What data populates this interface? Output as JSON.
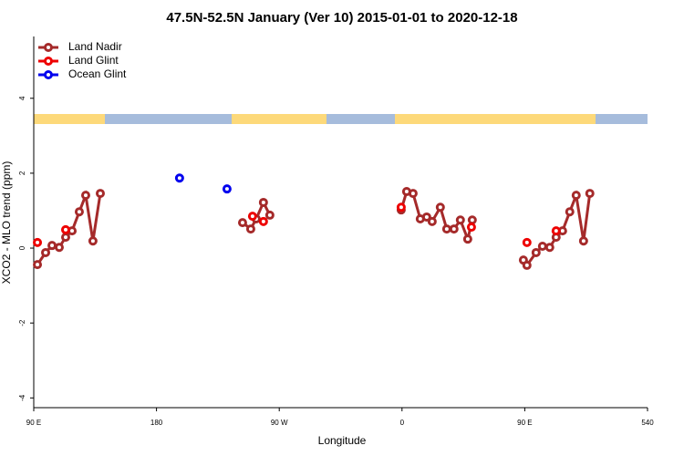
{
  "chart_data": {
    "type": "line",
    "title": "47.5N-52.5N January (Ver 10)   2015-01-01 to 2020-12-18",
    "x_label": "Longitude",
    "y_label": "XCO2 - MLO trend (ppm)",
    "xlim": [
      90,
      540
    ],
    "ylim": [
      -4.26,
      5.65
    ],
    "xticks": [
      {
        "value": 90,
        "label": "90 E"
      },
      180,
      {
        "value": 270,
        "label": "90 W"
      },
      {
        "value": 360,
        "label": "0"
      },
      {
        "value": 450,
        "label": "90 E"
      },
      540
    ],
    "yticks": [
      -4,
      -2,
      0,
      2,
      4
    ],
    "legend": "top-left",
    "series": [
      {
        "name": "Land Nadir",
        "color": "#a52a2a",
        "x": [
          92.7,
          98.7,
          103.4,
          108.7,
          113.4,
          118.1,
          123.4,
          128.1,
          133.4,
          138.8,
          null,
          243.1,
          249.1,
          253.1,
          258.4,
          263.1,
          null,
          359.4,
          363.4,
          368.1,
          373.4,
          378.1,
          382.1,
          388.1,
          392.8,
          398.1,
          402.8,
          408.2,
          411.5,
          null,
          449.0,
          451.6,
          458.3,
          463.0,
          468.3,
          473.0,
          477.7,
          483.0,
          487.7,
          493.1,
          497.7
        ],
        "values": [
          -0.44,
          -0.12,
          0.07,
          0.02,
          0.29,
          0.46,
          0.97,
          1.41,
          0.19,
          1.46,
          null,
          0.68,
          0.51,
          0.78,
          1.22,
          0.88,
          null,
          1.02,
          1.51,
          1.46,
          0.78,
          0.83,
          0.71,
          1.09,
          0.51,
          0.51,
          0.75,
          0.24,
          0.75,
          null,
          -0.32,
          -0.46,
          -0.12,
          0.05,
          0.02,
          0.29,
          0.46,
          0.97,
          1.41,
          0.19,
          1.46
        ]
      },
      {
        "name": "Land Glint",
        "color": "#ee0000",
        "x": [
          92.7,
          null,
          113.4,
          null,
          250.4,
          null,
          258.4,
          null,
          359.4,
          null,
          410.9,
          null,
          451.6,
          null,
          473.0
        ],
        "values": [
          0.15,
          null,
          0.49,
          null,
          0.85,
          null,
          0.71,
          null,
          1.09,
          null,
          0.56,
          null,
          0.15,
          null,
          0.46
        ]
      },
      {
        "name": "Ocean Glint",
        "color": "#0000ee",
        "x": [
          196.9,
          null,
          231.7
        ],
        "values": [
          1.87,
          null,
          1.58
        ]
      }
    ]
  }
}
